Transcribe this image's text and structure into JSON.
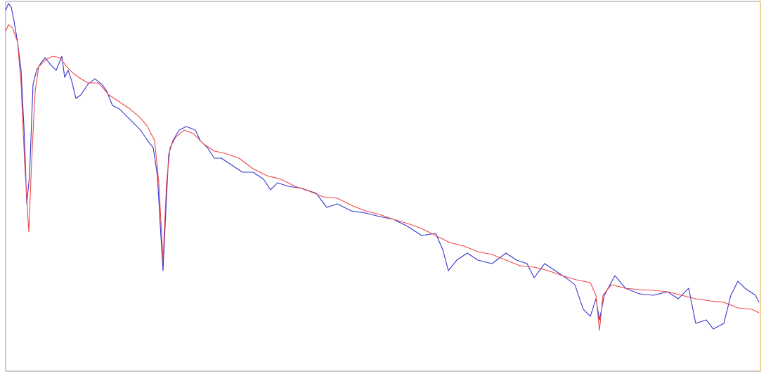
{
  "chart_data": {
    "type": "line",
    "xlim": [
      8,
      1082
    ],
    "ylim": [
      0,
      526
    ],
    "series": [
      {
        "color": "#3535d0",
        "x": [
          8,
          12,
          16,
          20,
          25,
          30,
          35,
          38,
          42,
          47,
          52,
          58,
          64,
          72,
          80,
          88,
          92,
          97,
          102,
          108,
          115,
          125,
          135,
          145,
          152,
          160,
          170,
          180,
          190,
          200,
          210,
          218,
          224,
          228,
          232,
          236,
          240,
          246,
          255,
          265,
          278,
          285,
          295,
          305,
          315,
          330,
          345,
          360,
          375,
          385,
          395,
          410,
          430,
          450,
          465,
          480,
          500,
          520,
          540,
          560,
          580,
          600,
          620,
          630,
          638,
          650,
          665,
          680,
          700,
          720,
          735,
          750,
          760,
          775,
          790,
          805,
          818,
          830,
          840,
          848,
          853,
          860,
          875,
          890,
          910,
          930,
          950,
          965,
          980,
          990,
          1005,
          1015,
          1030,
          1040,
          1050,
          1060,
          1075,
          1080
        ],
        "values": [
          513,
          523,
          518,
          498,
          468,
          428,
          328,
          238,
          278,
          408,
          428,
          438,
          446,
          436,
          428,
          448,
          418,
          428,
          413,
          388,
          393,
          408,
          416,
          408,
          398,
          378,
          373,
          363,
          353,
          343,
          328,
          318,
          278,
          208,
          143,
          228,
          308,
          328,
          343,
          348,
          343,
          328,
          318,
          303,
          303,
          293,
          283,
          283,
          273,
          258,
          268,
          263,
          260,
          253,
          233,
          238,
          228,
          225,
          220,
          216,
          206,
          193,
          196,
          173,
          143,
          158,
          168,
          158,
          153,
          168,
          158,
          153,
          133,
          153,
          143,
          133,
          123,
          88,
          78,
          103,
          73,
          108,
          136,
          118,
          110,
          108,
          113,
          103,
          118,
          68,
          73,
          60,
          68,
          108,
          128,
          118,
          108,
          98
        ]
      },
      {
        "color": "#ee4848",
        "x": [
          8,
          12,
          18,
          25,
          30,
          35,
          41,
          45,
          50,
          55,
          65,
          75,
          85,
          95,
          105,
          115,
          125,
          140,
          155,
          170,
          185,
          200,
          210,
          220,
          226,
          232,
          237,
          242,
          250,
          262,
          275,
          290,
          305,
          320,
          340,
          360,
          380,
          400,
          420,
          440,
          460,
          480,
          500,
          520,
          540,
          560,
          580,
          600,
          620,
          640,
          660,
          680,
          700,
          720,
          740,
          760,
          780,
          800,
          820,
          840,
          848,
          853,
          858,
          870,
          890,
          910,
          930,
          950,
          970,
          990,
          1010,
          1030,
          1050,
          1070,
          1080
        ],
        "values": [
          483,
          493,
          488,
          468,
          408,
          298,
          198,
          298,
          398,
          433,
          443,
          448,
          446,
          433,
          423,
          416,
          410,
          410,
          393,
          383,
          373,
          360,
          348,
          328,
          268,
          158,
          268,
          318,
          333,
          343,
          338,
          323,
          313,
          310,
          303,
          288,
          278,
          273,
          263,
          256,
          248,
          246,
          236,
          228,
          223,
          216,
          210,
          203,
          193,
          183,
          178,
          170,
          166,
          158,
          150,
          148,
          143,
          136,
          130,
          126,
          108,
          58,
          108,
          123,
          118,
          116,
          115,
          113,
          108,
          103,
          100,
          98,
          90,
          88,
          83
        ]
      }
    ]
  }
}
